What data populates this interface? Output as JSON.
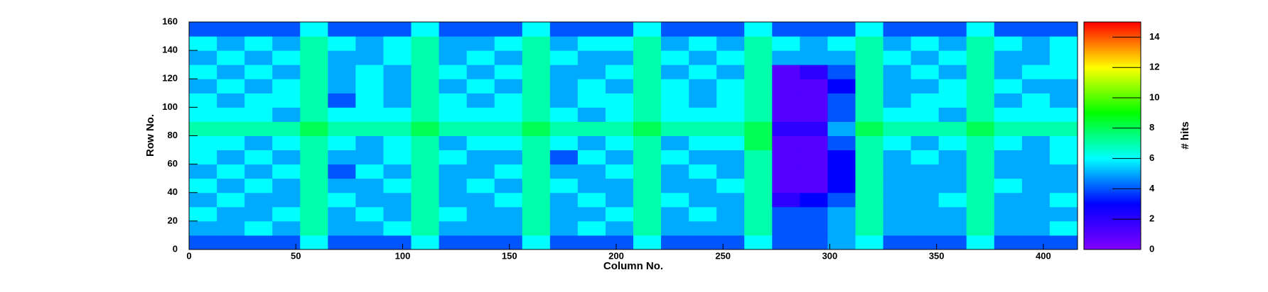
{
  "chart_data": {
    "type": "heatmap",
    "x_label": "Column No.",
    "y_label": "Row No.",
    "z_label": "# hits",
    "xbins": [
      0,
      13,
      26,
      39,
      52,
      65,
      78,
      91,
      104,
      117,
      130,
      143,
      156,
      169,
      182,
      195,
      208,
      221,
      234,
      247,
      260,
      273,
      286,
      299,
      312,
      325,
      338,
      351,
      364,
      377,
      390,
      403,
      416
    ],
    "ybins": [
      0,
      10,
      20,
      30,
      40,
      50,
      60,
      70,
      80,
      90,
      100,
      110,
      120,
      130,
      140,
      150,
      160
    ],
    "z": [
      [
        4,
        4,
        4,
        4,
        6,
        4,
        4,
        4,
        6,
        4,
        4,
        4,
        6,
        4,
        4,
        4,
        6,
        4,
        4,
        4,
        6,
        4,
        4,
        5,
        6,
        4,
        4,
        4,
        6,
        4,
        4,
        4
      ],
      [
        5,
        5,
        6,
        5,
        7,
        5,
        5,
        6,
        7,
        5,
        5,
        5,
        7,
        5,
        6,
        5,
        7,
        5,
        5,
        5,
        7,
        4,
        4,
        5,
        7,
        5,
        5,
        5,
        7,
        5,
        5,
        6
      ],
      [
        6,
        5,
        5,
        6,
        7,
        5,
        6,
        5,
        7,
        6,
        5,
        5,
        7,
        5,
        5,
        6,
        7,
        5,
        6,
        5,
        7,
        4,
        4,
        5,
        7,
        5,
        5,
        5,
        7,
        5,
        5,
        5
      ],
      [
        5,
        6,
        5,
        5,
        7,
        6,
        5,
        5,
        7,
        5,
        5,
        6,
        7,
        5,
        6,
        5,
        7,
        6,
        5,
        5,
        7,
        2,
        3,
        4,
        7,
        5,
        5,
        6,
        7,
        5,
        5,
        6
      ],
      [
        6,
        5,
        6,
        5,
        7,
        5,
        5,
        6,
        7,
        5,
        6,
        5,
        7,
        6,
        5,
        5,
        7,
        5,
        5,
        6,
        7,
        1,
        1,
        3,
        7,
        5,
        5,
        5,
        7,
        6,
        5,
        5
      ],
      [
        5,
        6,
        5,
        6,
        7,
        4,
        6,
        5,
        7,
        5,
        5,
        6,
        7,
        5,
        5,
        6,
        7,
        5,
        6,
        5,
        7,
        1,
        1,
        3,
        7,
        5,
        5,
        5,
        7,
        5,
        5,
        5
      ],
      [
        6,
        5,
        6,
        5,
        7,
        5,
        5,
        6,
        7,
        6,
        5,
        5,
        7,
        4,
        6,
        5,
        7,
        6,
        5,
        5,
        7,
        1,
        1,
        3,
        7,
        5,
        6,
        5,
        7,
        5,
        5,
        6
      ],
      [
        6,
        6,
        5,
        6,
        7,
        6,
        5,
        6,
        7,
        5,
        6,
        6,
        7,
        6,
        5,
        6,
        7,
        5,
        6,
        6,
        8,
        1,
        1,
        4,
        7,
        6,
        5,
        6,
        7,
        6,
        5,
        6
      ],
      [
        7,
        7,
        7,
        7,
        8,
        7,
        7,
        7,
        8,
        7,
        7,
        7,
        8,
        7,
        7,
        7,
        8,
        7,
        7,
        7,
        8,
        2,
        2,
        5,
        8,
        7,
        7,
        7,
        8,
        7,
        7,
        7
      ],
      [
        6,
        6,
        6,
        5,
        7,
        6,
        6,
        6,
        7,
        6,
        6,
        6,
        7,
        6,
        5,
        6,
        7,
        6,
        6,
        6,
        7,
        1,
        1,
        4,
        7,
        6,
        6,
        5,
        7,
        6,
        6,
        6
      ],
      [
        6,
        5,
        6,
        6,
        7,
        4,
        6,
        5,
        7,
        6,
        5,
        6,
        7,
        5,
        6,
        6,
        7,
        6,
        5,
        6,
        7,
        1,
        1,
        4,
        7,
        5,
        6,
        6,
        7,
        5,
        6,
        5
      ],
      [
        5,
        6,
        5,
        6,
        7,
        5,
        6,
        5,
        7,
        5,
        6,
        5,
        7,
        5,
        6,
        5,
        7,
        6,
        5,
        6,
        7,
        1,
        1,
        3,
        7,
        5,
        5,
        6,
        7,
        6,
        5,
        5
      ],
      [
        6,
        5,
        6,
        5,
        7,
        5,
        6,
        5,
        7,
        6,
        5,
        6,
        7,
        5,
        5,
        6,
        7,
        5,
        6,
        5,
        7,
        1,
        2,
        4,
        7,
        5,
        6,
        5,
        7,
        5,
        6,
        6
      ],
      [
        5,
        6,
        5,
        6,
        7,
        5,
        5,
        6,
        7,
        5,
        6,
        5,
        7,
        6,
        5,
        5,
        7,
        6,
        5,
        6,
        7,
        5,
        5,
        5,
        7,
        6,
        5,
        6,
        7,
        5,
        5,
        6
      ],
      [
        6,
        5,
        6,
        5,
        7,
        6,
        5,
        6,
        7,
        5,
        5,
        6,
        7,
        5,
        6,
        6,
        7,
        5,
        6,
        5,
        7,
        6,
        5,
        6,
        7,
        5,
        6,
        5,
        7,
        6,
        5,
        6
      ],
      [
        4,
        4,
        4,
        4,
        6,
        4,
        4,
        4,
        6,
        4,
        4,
        4,
        6,
        4,
        4,
        4,
        6,
        4,
        4,
        4,
        6,
        4,
        4,
        4,
        6,
        4,
        4,
        4,
        6,
        4,
        4,
        4
      ]
    ],
    "xlim": [
      0,
      416
    ],
    "xticks": [
      0,
      50,
      100,
      150,
      200,
      250,
      300,
      350,
      400
    ],
    "ylim": [
      0,
      160
    ],
    "yticks": [
      0,
      20,
      40,
      60,
      80,
      100,
      120,
      140,
      160
    ],
    "zlim": [
      0,
      15
    ],
    "zticks": [
      0,
      2,
      4,
      6,
      8,
      10,
      12,
      14
    ],
    "colorscale": [
      "#8000ff",
      "#0000ff",
      "#00ffff",
      "#00ff00",
      "#ffff00",
      "#ff0000"
    ]
  }
}
